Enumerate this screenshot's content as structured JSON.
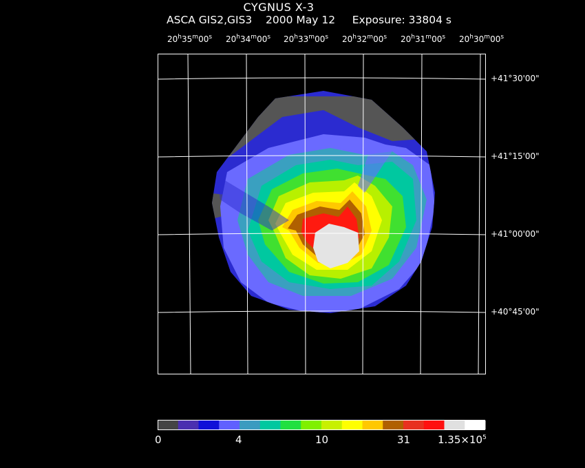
{
  "header": {
    "title": "CYGNUS X-3",
    "instrument": "ASCA GIS2,GIS3",
    "date": "2000 May 12",
    "exposure": "Exposure: 33804 s"
  },
  "ra_labels": [
    {
      "h": "20",
      "m": "35",
      "s": "00"
    },
    {
      "h": "20",
      "m": "34",
      "s": "00"
    },
    {
      "h": "20",
      "m": "33",
      "s": "00"
    },
    {
      "h": "20",
      "m": "32",
      "s": "00"
    },
    {
      "h": "20",
      "m": "31",
      "s": "00"
    },
    {
      "h": "20",
      "m": "30",
      "s": "00"
    }
  ],
  "dec_labels": [
    "+41°30'00\"",
    "+41°15'00\"",
    "+41°00'00\"",
    "+40°45'00\""
  ],
  "colorbar": {
    "colors": [
      "#444444",
      "#4a2fb0",
      "#1010d8",
      "#6060ff",
      "#3b9bc0",
      "#00c8a0",
      "#20e040",
      "#80f000",
      "#c8f000",
      "#ffff00",
      "#ffc800",
      "#b06000",
      "#e83020",
      "#ff1010",
      "#e0e0e0",
      "#ffffff"
    ],
    "labels": [
      {
        "text": "0"
      },
      {
        "text": "4"
      },
      {
        "text": "10"
      },
      {
        "text": "31"
      },
      {
        "text": "1.35×10",
        "sup": "5"
      }
    ]
  }
}
